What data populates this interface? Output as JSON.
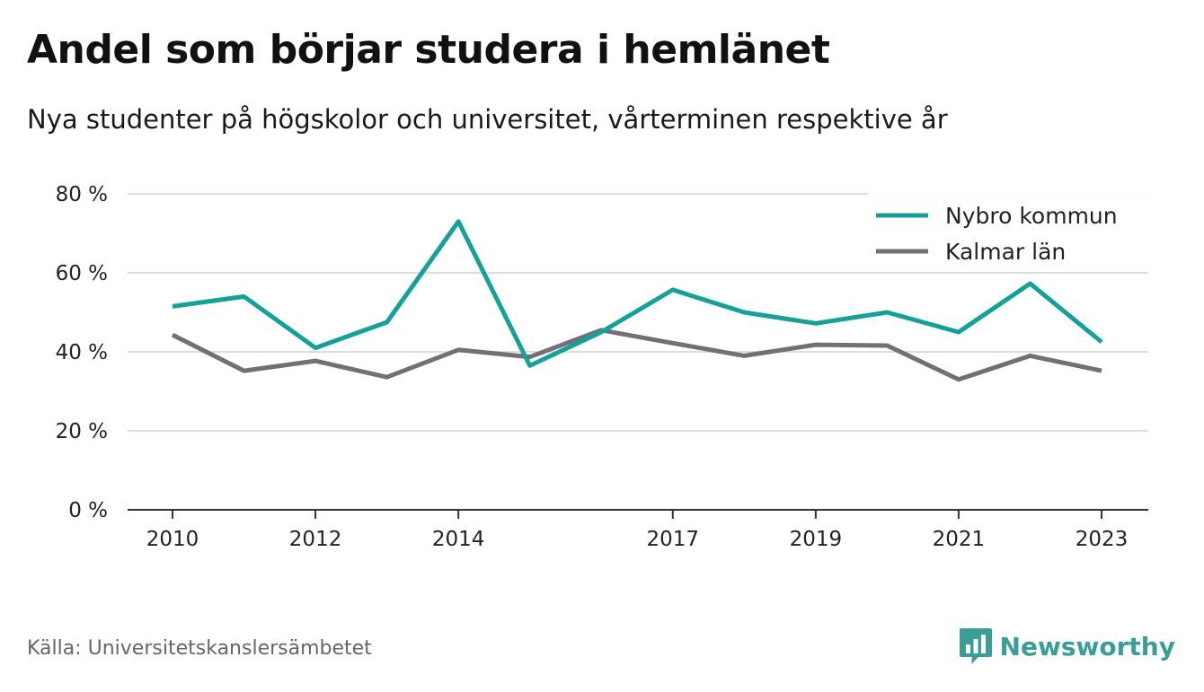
{
  "title": "Andel som börjar studera i hemlänet",
  "subtitle": "Nya studenter på högskolor och universitet, vårterminen respektive år",
  "source": "Källa: Universitetskanslersämbetet",
  "brand": "Newsworthy",
  "colors": {
    "nybro": "#14a19a",
    "kalmar": "#707075",
    "grid": "#dddddd",
    "axis": "#333333",
    "brand": "#3a9e97"
  },
  "chart_data": {
    "type": "line",
    "x": [
      2010,
      2011,
      2012,
      2013,
      2014,
      2015,
      2016,
      2017,
      2018,
      2019,
      2020,
      2021,
      2022,
      2023
    ],
    "x_tick_labels": [
      "2010",
      "2012",
      "2014",
      "2017",
      "2019",
      "2021",
      "2023"
    ],
    "x_tick_values": [
      2010,
      2012,
      2014,
      2017,
      2019,
      2021,
      2023
    ],
    "y_tick_labels": [
      "0 %",
      "20 %",
      "40 %",
      "60 %",
      "80 %"
    ],
    "y_tick_values": [
      0,
      20,
      40,
      60,
      80
    ],
    "ylim": [
      0,
      80
    ],
    "grid": true,
    "legend_position": "top-right",
    "series": [
      {
        "name": "Nybro kommun",
        "color": "#14a19a",
        "values": [
          51.5,
          54,
          41,
          47.5,
          73,
          36.5,
          45,
          55.7,
          50,
          47.2,
          50,
          45,
          57.3,
          42.5
        ]
      },
      {
        "name": "Kalmar län",
        "color": "#707075",
        "values": [
          44.3,
          35.2,
          37.7,
          33.6,
          40.5,
          38.7,
          45.5,
          42.2,
          39,
          41.8,
          41.6,
          33,
          39,
          35.2
        ]
      }
    ]
  }
}
